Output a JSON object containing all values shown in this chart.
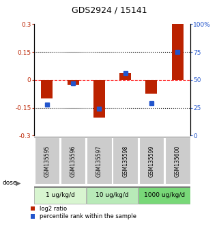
{
  "title": "GDS2924 / 15141",
  "samples": [
    "GSM135595",
    "GSM135596",
    "GSM135597",
    "GSM135598",
    "GSM135599",
    "GSM135600"
  ],
  "log2_ratio": [
    -0.1,
    -0.025,
    -0.205,
    0.038,
    -0.075,
    0.305
  ],
  "percentile_rank": [
    28,
    47,
    24,
    56,
    29,
    75
  ],
  "bar_color_red": "#bb2200",
  "bar_color_blue": "#2255cc",
  "ylim_left": [
    -0.3,
    0.3
  ],
  "ylim_right": [
    0,
    100
  ],
  "yticks_left": [
    -0.3,
    -0.15,
    0,
    0.15,
    0.3
  ],
  "yticks_right": [
    0,
    25,
    50,
    75,
    100
  ],
  "ytick_labels_left": [
    "-0.3",
    "-0.15",
    "0",
    "0.15",
    "0.3"
  ],
  "ytick_labels_right": [
    "0",
    "25",
    "50",
    "75",
    "100%"
  ],
  "hlines": [
    0.15,
    0.0,
    -0.15
  ],
  "hline_styles": [
    "dotted",
    "dashed",
    "dotted"
  ],
  "hline_colors": [
    "black",
    "red",
    "black"
  ],
  "dose_label": "dose",
  "legend_red": "log2 ratio",
  "legend_blue": "percentile rank within the sample",
  "bar_width": 0.45,
  "blue_marker_size": 5,
  "sample_bg_color": "#cccccc",
  "dose_colors": [
    "#d8f5d0",
    "#b8eab8",
    "#78d878"
  ],
  "dose_groups": [
    {
      "label": "1 ug/kg/d",
      "start": 0,
      "end": 2
    },
    {
      "label": "10 ug/kg/d",
      "start": 2,
      "end": 4
    },
    {
      "label": "1000 ug/kg/d",
      "start": 4,
      "end": 6
    }
  ]
}
